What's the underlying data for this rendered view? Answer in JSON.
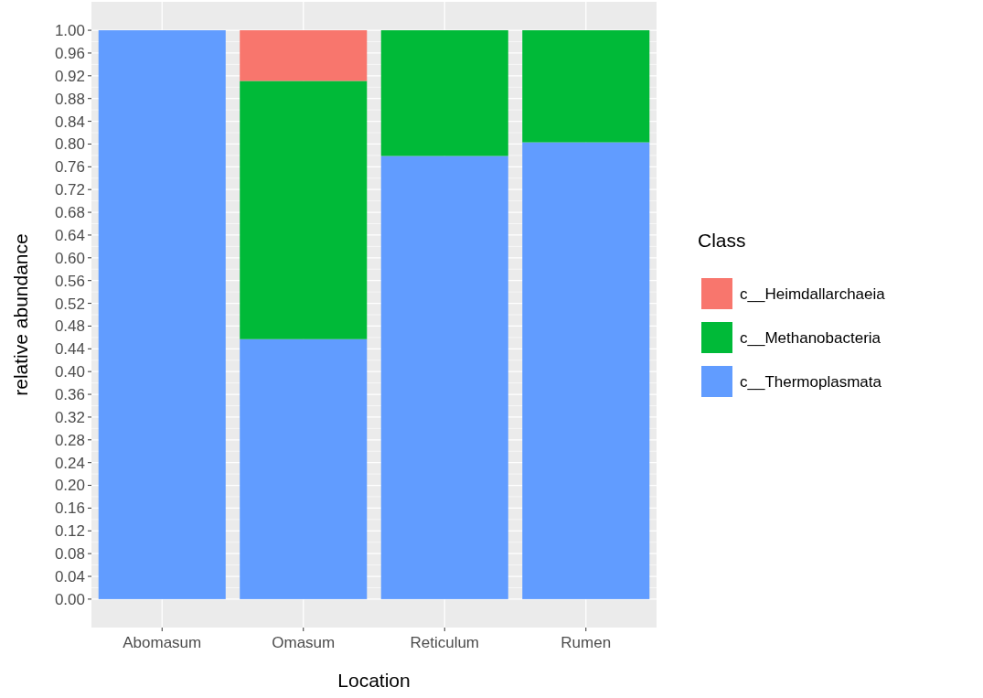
{
  "chart_data": {
    "type": "bar",
    "stacked": true,
    "xlabel": "Location",
    "ylabel": "relative abundance",
    "legend_title": "Class",
    "legend": "right",
    "grid": true,
    "categories": [
      "Abomasum",
      "Omasum",
      "Reticulum",
      "Rumen"
    ],
    "series": [
      {
        "name": "c__Thermoplasmata",
        "color": "#619cff",
        "values": [
          1.0,
          0.457,
          0.779,
          0.803
        ]
      },
      {
        "name": "c__Methanobacteria",
        "color": "#00ba38",
        "values": [
          0,
          0.454,
          0.221,
          0.197
        ]
      },
      {
        "name": "c__Heimdallarchaeia",
        "color": "#f8766d",
        "values": [
          0,
          0.089,
          0,
          0
        ]
      }
    ],
    "ylim": [
      -0.05,
      1.05
    ],
    "yticks": [
      {
        "value": 0,
        "label": "0.00"
      },
      {
        "value": 0.04,
        "label": "0.04"
      },
      {
        "value": 0.08,
        "label": "0.08"
      },
      {
        "value": 0.12,
        "label": "0.12"
      },
      {
        "value": 0.16,
        "label": "0.16"
      },
      {
        "value": 0.2,
        "label": "0.20"
      },
      {
        "value": 0.24,
        "label": "0.24"
      },
      {
        "value": 0.28,
        "label": "0.28"
      },
      {
        "value": 0.32,
        "label": "0.32"
      },
      {
        "value": 0.36,
        "label": "0.36"
      },
      {
        "value": 0.4,
        "label": "0.40"
      },
      {
        "value": 0.44,
        "label": "0.44"
      },
      {
        "value": 0.48,
        "label": "0.48"
      },
      {
        "value": 0.52,
        "label": "0.52"
      },
      {
        "value": 0.56,
        "label": "0.56"
      },
      {
        "value": 0.6,
        "label": "0.60"
      },
      {
        "value": 0.64,
        "label": "0.64"
      },
      {
        "value": 0.68,
        "label": "0.68"
      },
      {
        "value": 0.72,
        "label": "0.72"
      },
      {
        "value": 0.76,
        "label": "0.76"
      },
      {
        "value": 0.8,
        "label": "0.80"
      },
      {
        "value": 0.84,
        "label": "0.84"
      },
      {
        "value": 0.88,
        "label": "0.88"
      },
      {
        "value": 0.92,
        "label": "0.92"
      },
      {
        "value": 0.96,
        "label": "0.96"
      },
      {
        "value": 1,
        "label": "1.00"
      }
    ]
  }
}
